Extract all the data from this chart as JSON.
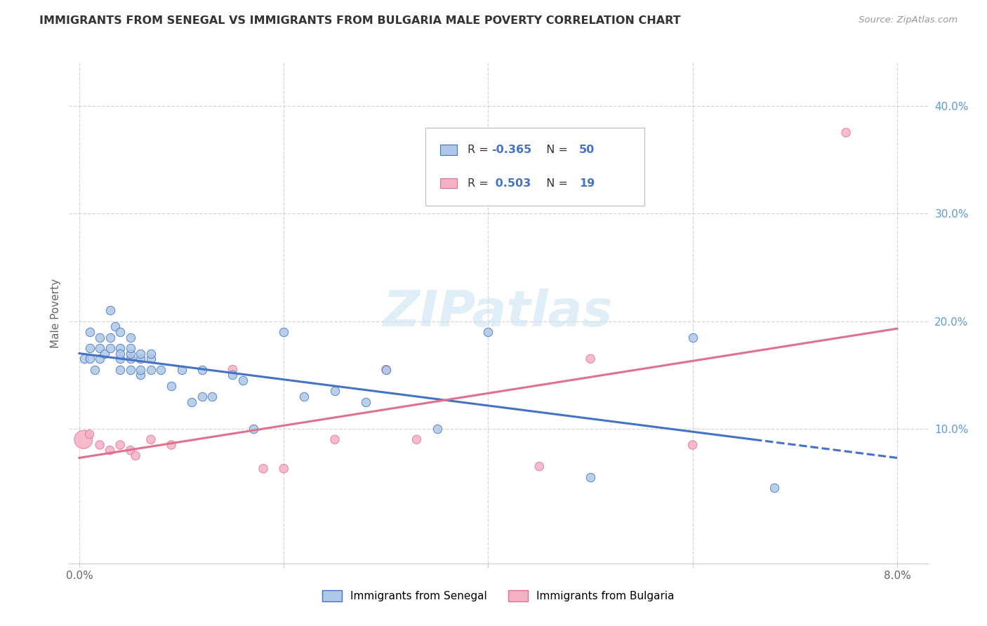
{
  "title": "IMMIGRANTS FROM SENEGAL VS IMMIGRANTS FROM BULGARIA MALE POVERTY CORRELATION CHART",
  "source": "Source: ZipAtlas.com",
  "ylabel": "Male Poverty",
  "R1": "-0.365",
  "N1": "50",
  "R2": "0.503",
  "N2": "19",
  "color_senegal": "#adc8e8",
  "color_bulgaria": "#f5b0c5",
  "line_color_senegal": "#4472c4",
  "line_color_bulgaria": "#e07090",
  "legend_label1": "Immigrants from Senegal",
  "legend_label2": "Immigrants from Bulgaria",
  "grid_color": "#cccccc",
  "senegal_x": [
    0.0005,
    0.001,
    0.001,
    0.001,
    0.0015,
    0.002,
    0.002,
    0.002,
    0.0025,
    0.003,
    0.003,
    0.003,
    0.0035,
    0.004,
    0.004,
    0.004,
    0.004,
    0.004,
    0.005,
    0.005,
    0.005,
    0.005,
    0.005,
    0.006,
    0.006,
    0.006,
    0.006,
    0.007,
    0.007,
    0.007,
    0.008,
    0.009,
    0.01,
    0.011,
    0.012,
    0.012,
    0.013,
    0.015,
    0.016,
    0.017,
    0.02,
    0.022,
    0.025,
    0.028,
    0.03,
    0.035,
    0.04,
    0.05,
    0.06,
    0.068
  ],
  "senegal_y": [
    0.165,
    0.19,
    0.175,
    0.165,
    0.155,
    0.175,
    0.165,
    0.185,
    0.17,
    0.21,
    0.175,
    0.185,
    0.195,
    0.155,
    0.175,
    0.165,
    0.17,
    0.19,
    0.155,
    0.165,
    0.17,
    0.175,
    0.185,
    0.15,
    0.165,
    0.155,
    0.17,
    0.155,
    0.165,
    0.17,
    0.155,
    0.14,
    0.155,
    0.125,
    0.155,
    0.13,
    0.13,
    0.15,
    0.145,
    0.1,
    0.19,
    0.13,
    0.135,
    0.125,
    0.155,
    0.1,
    0.19,
    0.055,
    0.185,
    0.045
  ],
  "bulgaria_x": [
    0.0004,
    0.001,
    0.002,
    0.003,
    0.004,
    0.005,
    0.0055,
    0.007,
    0.009,
    0.015,
    0.018,
    0.02,
    0.025,
    0.03,
    0.033,
    0.045,
    0.05,
    0.06,
    0.075
  ],
  "bulgaria_y": [
    0.09,
    0.095,
    0.085,
    0.08,
    0.085,
    0.08,
    0.075,
    0.09,
    0.085,
    0.155,
    0.063,
    0.063,
    0.09,
    0.155,
    0.09,
    0.065,
    0.165,
    0.085,
    0.375
  ],
  "bulgaria_large_idx": 0,
  "bulgaria_large_size": 350,
  "default_size": 80,
  "line_y0_senegal": 0.17,
  "line_y1_senegal": 0.073,
  "line_y0_bulgaria": 0.073,
  "line_y1_bulgaria": 0.193,
  "line_x0": 0.0,
  "line_x1": 0.08,
  "line_dash_start": 0.066,
  "xlim": [
    -0.001,
    0.083
  ],
  "ylim": [
    -0.025,
    0.44
  ]
}
